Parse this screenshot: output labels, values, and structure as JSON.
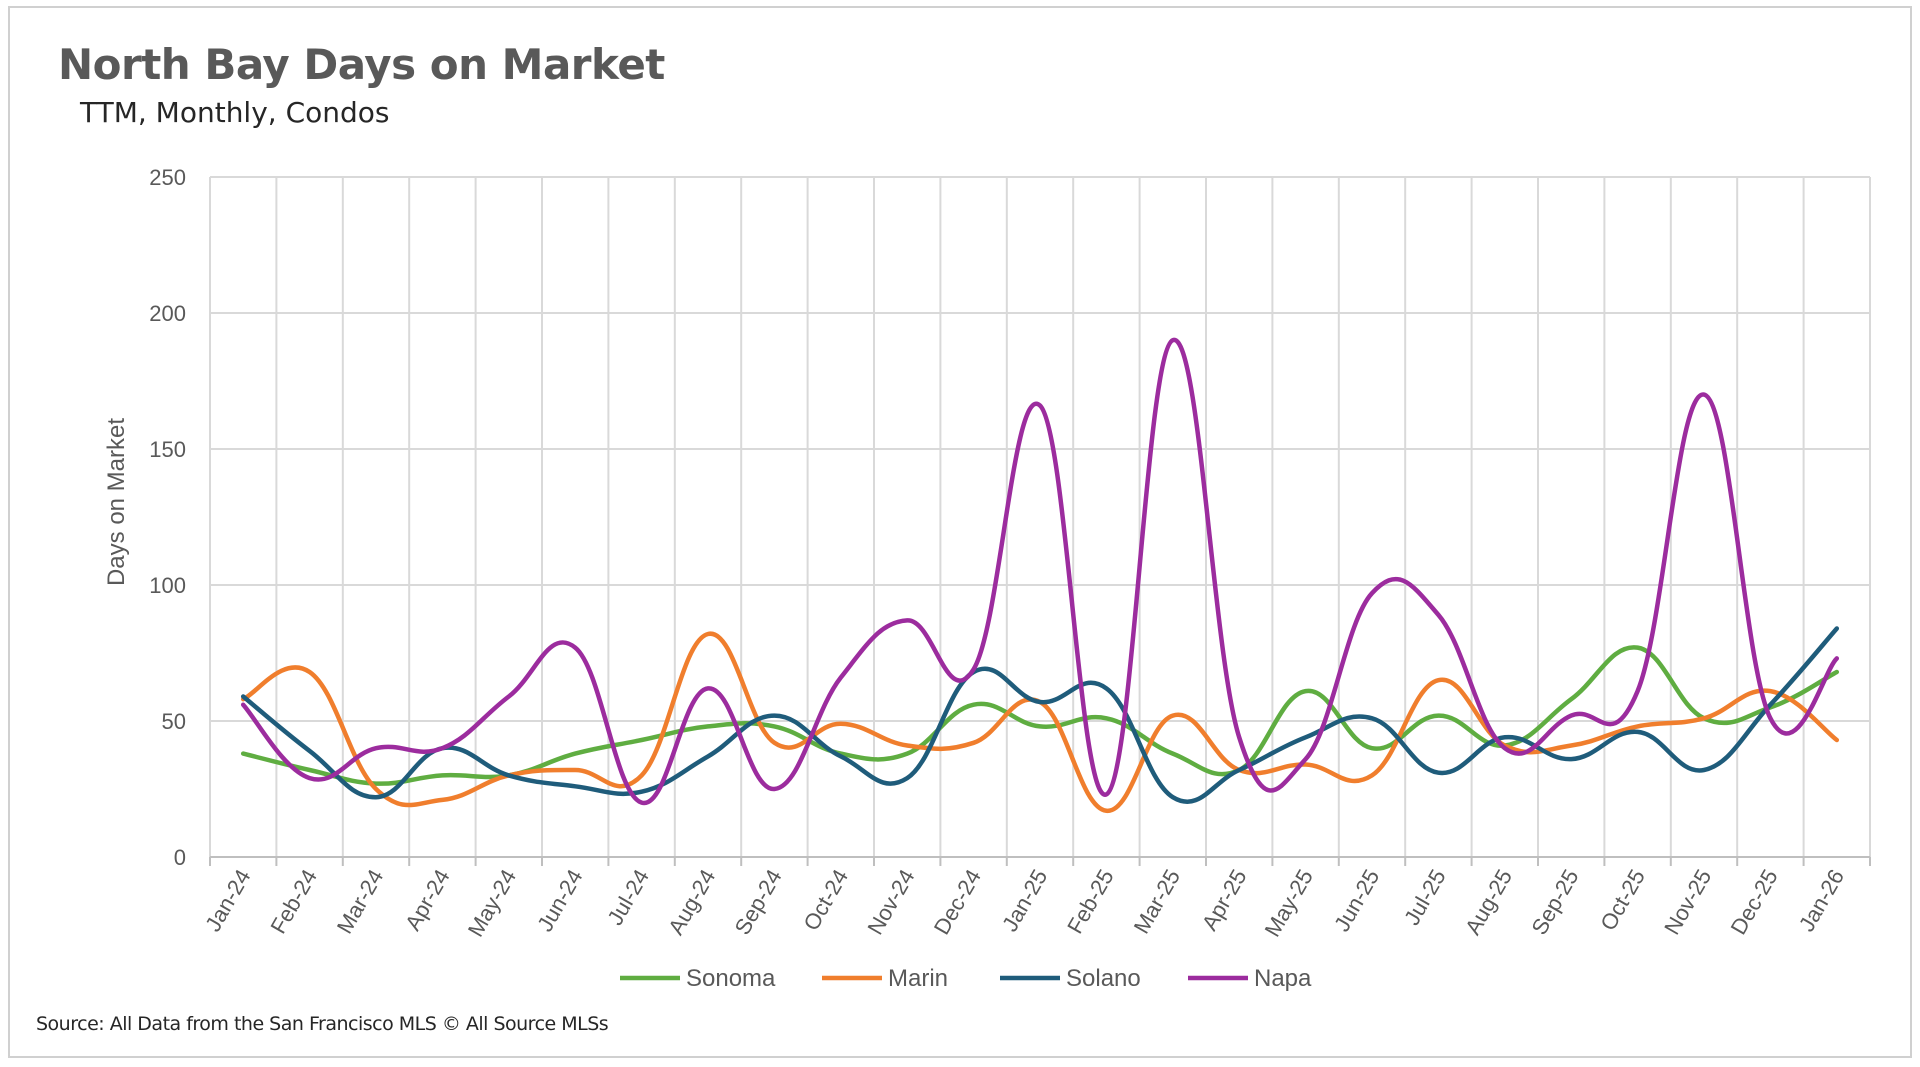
{
  "chart_data": {
    "type": "line",
    "title": "North Bay Days on Market",
    "subtitle": "TTM, Monthly, Condos",
    "xlabel": "",
    "ylabel": "Days on Market",
    "ylim": [
      0,
      250
    ],
    "yticks": [
      0,
      50,
      100,
      150,
      200,
      250
    ],
    "grid": true,
    "legend_position": "bottom",
    "categories": [
      "Jan-24",
      "Feb-24",
      "Mar-24",
      "Apr-24",
      "May-24",
      "Jun-24",
      "Jul-24",
      "Aug-24",
      "Sep-24",
      "Oct-24",
      "Nov-24",
      "Dec-24",
      "Jan-25",
      "Feb-25",
      "Mar-25",
      "Apr-25",
      "May-25",
      "Jun-25",
      "Jul-25",
      "Aug-25",
      "Sep-25",
      "Oct-25",
      "Nov-25",
      "Dec-25",
      "Jan-26"
    ],
    "series": [
      {
        "name": "Sonoma",
        "color": "#5fad41",
        "values": [
          38,
          32,
          27,
          30,
          30,
          38,
          43,
          48,
          48,
          38,
          38,
          56,
          48,
          51,
          38,
          32,
          61,
          40,
          52,
          41,
          58,
          77,
          51,
          55,
          68
        ]
      },
      {
        "name": "Marin",
        "color": "#f07e2d",
        "values": [
          58,
          68,
          25,
          21,
          30,
          32,
          30,
          82,
          42,
          49,
          41,
          42,
          57,
          17,
          52,
          32,
          34,
          30,
          65,
          41,
          41,
          48,
          51,
          61,
          43
        ]
      },
      {
        "name": "Solano",
        "color": "#1f5c7b",
        "values": [
          59,
          39,
          22,
          40,
          30,
          26,
          24,
          37,
          52,
          37,
          29,
          68,
          57,
          62,
          22,
          32,
          44,
          51,
          31,
          44,
          36,
          46,
          32,
          56,
          84
        ]
      },
      {
        "name": "Napa",
        "color": "#9c2c9e",
        "values": [
          56,
          29,
          40,
          40,
          59,
          77,
          20,
          62,
          25,
          66,
          87,
          69,
          166,
          23,
          190,
          44,
          36,
          97,
          89,
          40,
          52,
          61,
          170,
          51,
          73
        ]
      }
    ]
  },
  "source_text": "Source: All Data from the San Francisco MLS © All Source MLSs"
}
